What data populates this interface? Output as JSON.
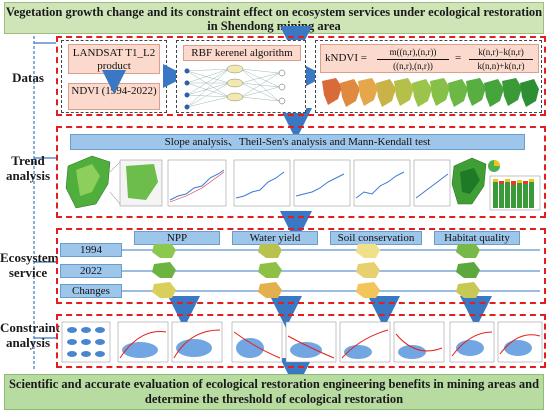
{
  "title": "Vegetation growth change and its constraint effect on ecosystem services under ecological restoration in Shendong mining area",
  "stages": {
    "datas": "Datas",
    "trend": "Trend analysis",
    "ecosystem": "Ecosystem service",
    "constraint": "Constraint analysis"
  },
  "datas": {
    "landsat": "LANDSAT T1_L2 product",
    "ndvi": "NDVI (1994-2022)",
    "rbf": "RBF kerenel algorithm",
    "kndvi_label": "kNDVI =",
    "kndvi_num1": "m((n,r),(n,r))",
    "kndvi_den1": "((n,r),(n,r))",
    "kndvi_num2": "k(n,r)−k(n,r)",
    "kndvi_den2": "k(n,n)+k(n,r)"
  },
  "trend": {
    "methods": "Slope analysis、Theil-Sen's analysis and Mann-Kendall test"
  },
  "ecosystem": {
    "columns": [
      "NPP",
      "Water yield",
      "Soil conservation",
      "Habitat quality"
    ],
    "rows": [
      "1994",
      "2022",
      "Changes"
    ]
  },
  "conclusion": "Scientific and accurate evaluation of ecological restoration engineering benefits in mining areas and determine the threshold of ecological restoration",
  "colors": {
    "title_bg": "#cfe5b8",
    "dashed_red": "#e02020",
    "pink": "#fbd9cc",
    "blue_bar": "#9ec5ea",
    "arrow_blue": "#3a78c4",
    "bottom_bg": "#b7dba0"
  }
}
